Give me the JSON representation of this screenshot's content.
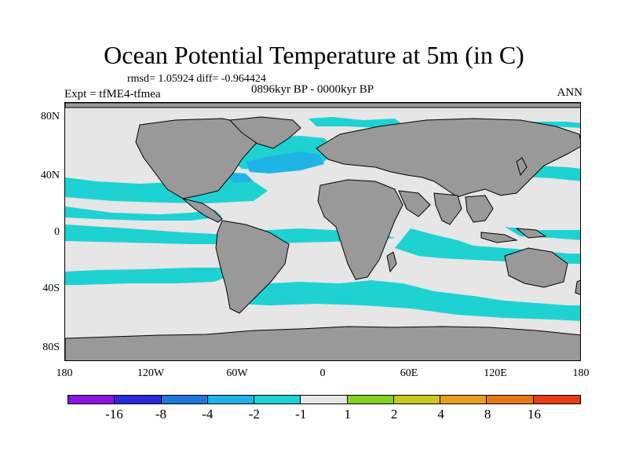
{
  "title": "Ocean Potential Temperature at 5m (in C)",
  "stats": "rmsd= 1.05924 diff= -0.964424",
  "period": "0896kyr BP - 0000kyr BP",
  "experiment": "Expt = tfME4-tfmea",
  "season": "ANN",
  "map": {
    "y_labels": [
      "80N",
      "40N",
      "0",
      "40S",
      "80S"
    ],
    "x_labels": [
      "180",
      "120W",
      "60W",
      "0",
      "60E",
      "120E",
      "180"
    ],
    "land_color": "#999999",
    "ocean_neutral_color": "#e6e6e6"
  },
  "colorbar": {
    "colors": [
      "#8a14e0",
      "#2a2ad8",
      "#1e78d8",
      "#1eb4e6",
      "#1ed2d2",
      "#e6e6e6",
      "#82d21e",
      "#c8c81e",
      "#e6a01e",
      "#e67814",
      "#e63c14"
    ],
    "labels": [
      "-16",
      "-8",
      "-4",
      "-2",
      "-1",
      "1",
      "2",
      "4",
      "8",
      "16"
    ]
  }
}
